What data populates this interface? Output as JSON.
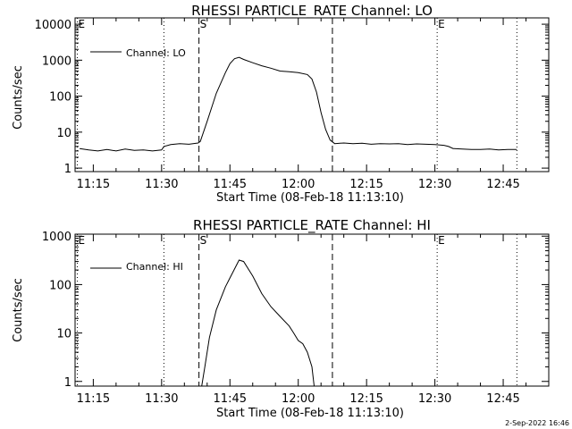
{
  "footer_date": "2-Sep-2022 16:46",
  "chart_data": [
    {
      "type": "line",
      "title": "RHESSI PARTICLE_RATE Channel: LO",
      "xlabel": "Start Time (08-Feb-18 11:13:10)",
      "ylabel": "Counts/sec",
      "x_tick_labels": [
        "11:15",
        "11:30",
        "11:45",
        "12:00",
        "12:15",
        "12:30",
        "12:45"
      ],
      "x_ticks_minutes": [
        15,
        30,
        45,
        60,
        75,
        90,
        105
      ],
      "xlim_minutes": [
        11,
        115
      ],
      "x_time_base": "11:00",
      "yscale": "log",
      "ylim": [
        0.8,
        15000
      ],
      "y_tick_labels": [
        "1",
        "10",
        "100",
        "1000",
        "10000"
      ],
      "y_ticks": [
        1,
        10,
        100,
        1000,
        10000
      ],
      "legend": "Channel: LO",
      "legend_position": "top-left",
      "markers": [
        {
          "label": "E",
          "minute": 11.5,
          "style": "dotted"
        },
        {
          "label": "",
          "minute": 30.5,
          "style": "dotted"
        },
        {
          "label": "S",
          "minute": 38.2,
          "style": "dashed"
        },
        {
          "label": "",
          "minute": 67.5,
          "style": "dashed"
        },
        {
          "label": "E",
          "minute": 90.5,
          "style": "dotted"
        },
        {
          "label": "",
          "minute": 108,
          "style": "dotted"
        }
      ],
      "series": [
        {
          "x": [
            12,
            14,
            16,
            18,
            20,
            22,
            24,
            26,
            28,
            30,
            30.5,
            32,
            34,
            36,
            38,
            38.5,
            40,
            42,
            44,
            45,
            46,
            47,
            48,
            50,
            52,
            54,
            56,
            58,
            60,
            62,
            63,
            64,
            65,
            66,
            67,
            68,
            70,
            72,
            74,
            76,
            78,
            80,
            82,
            84,
            86,
            88,
            90,
            92,
            93,
            94,
            96,
            98,
            100,
            102,
            104,
            106,
            108
          ],
          "y": [
            3.5,
            3.2,
            3.0,
            3.3,
            3.0,
            3.4,
            3.1,
            3.2,
            3.0,
            3.2,
            4.0,
            4.5,
            4.8,
            4.6,
            5.0,
            5.5,
            20,
            120,
            450,
            800,
            1100,
            1200,
            1050,
            850,
            700,
            600,
            500,
            480,
            450,
            400,
            300,
            130,
            35,
            12,
            6,
            4.8,
            5.0,
            4.8,
            4.9,
            4.6,
            4.8,
            4.7,
            4.8,
            4.5,
            4.7,
            4.6,
            4.5,
            4.3,
            4.0,
            3.5,
            3.4,
            3.3,
            3.3,
            3.4,
            3.2,
            3.3,
            3.3
          ]
        }
      ]
    },
    {
      "type": "line",
      "title": "RHESSI PARTICLE_RATE Channel: HI",
      "xlabel": "Start Time (08-Feb-18 11:13:10)",
      "ylabel": "Counts/sec",
      "x_tick_labels": [
        "11:15",
        "11:30",
        "11:45",
        "12:00",
        "12:15",
        "12:30",
        "12:45"
      ],
      "x_ticks_minutes": [
        15,
        30,
        45,
        60,
        75,
        90,
        105
      ],
      "xlim_minutes": [
        11,
        115
      ],
      "x_time_base": "11:00",
      "yscale": "log",
      "ylim": [
        0.8,
        1100
      ],
      "y_tick_labels": [
        "1",
        "10",
        "100",
        "1000"
      ],
      "y_ticks": [
        1,
        10,
        100,
        1000
      ],
      "legend": "Channel: HI",
      "legend_position": "top-left",
      "markers": [
        {
          "label": "E",
          "minute": 11.5,
          "style": "dotted"
        },
        {
          "label": "",
          "minute": 30.5,
          "style": "dotted"
        },
        {
          "label": "S",
          "minute": 38.2,
          "style": "dashed"
        },
        {
          "label": "",
          "minute": 67.5,
          "style": "dashed"
        },
        {
          "label": "E",
          "minute": 90.5,
          "style": "dotted"
        },
        {
          "label": "",
          "minute": 108,
          "style": "dotted"
        }
      ],
      "series": [
        {
          "x": [
            38.8,
            39.5,
            40.5,
            42,
            44,
            46,
            47,
            48,
            50,
            52,
            54,
            56,
            58,
            59,
            60,
            61,
            62,
            63,
            63.5
          ],
          "y": [
            0.8,
            2,
            8,
            30,
            90,
            210,
            320,
            300,
            150,
            65,
            35,
            22,
            14,
            10,
            7,
            6,
            4,
            2,
            0.8
          ]
        }
      ]
    }
  ]
}
